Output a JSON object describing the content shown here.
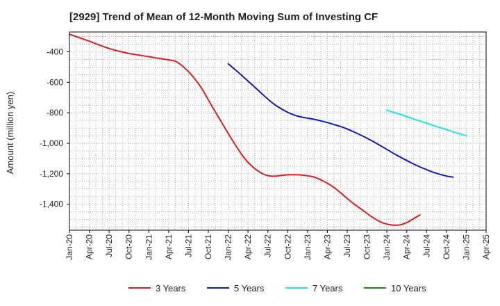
{
  "chart_data": {
    "type": "line",
    "title": "[2929]  Trend of Mean of 12-Month Moving Sum of Investing CF",
    "xlabel": "",
    "ylabel": "Amount (million yen)",
    "x_ticks": [
      "Jan-20",
      "Apr-20",
      "Jul-20",
      "Oct-20",
      "Jan-21",
      "Apr-21",
      "Jul-21",
      "Oct-21",
      "Jan-22",
      "Apr-22",
      "Jul-22",
      "Oct-22",
      "Jan-23",
      "Apr-23",
      "Jul-23",
      "Oct-23",
      "Jan-24",
      "Apr-24",
      "Jul-24",
      "Oct-24",
      "Jan-25",
      "Apr-25"
    ],
    "y_ticks": [
      -400,
      -600,
      -800,
      -1000,
      -1200,
      -1400
    ],
    "y_tick_labels": [
      "-400",
      "-600",
      "-800",
      "-1,000",
      "-1,200",
      "-1,400"
    ],
    "ylim": [
      -1570,
      -270
    ],
    "grid": true,
    "legend_position": "bottom",
    "series": [
      {
        "name": "3 Years",
        "color": "#e31a1c",
        "start_index": 0,
        "values": [
          -285,
          -300,
          -315,
          -330,
          -347,
          -363,
          -378,
          -391,
          -401,
          -411,
          -418,
          -425,
          -432,
          -439,
          -446,
          -453,
          -462,
          -490,
          -530,
          -580,
          -640,
          -715,
          -790,
          -862,
          -935,
          -1005,
          -1070,
          -1125,
          -1165,
          -1195,
          -1212,
          -1216,
          -1211,
          -1207,
          -1206,
          -1208,
          -1213,
          -1222,
          -1240,
          -1262,
          -1290,
          -1325,
          -1362,
          -1397,
          -1428,
          -1460,
          -1490,
          -1515,
          -1530,
          -1537,
          -1535,
          -1520,
          -1495,
          -1470
        ]
      },
      {
        "name": "5 Years",
        "color": "#0b18c8",
        "start_index": 24,
        "values": [
          -478,
          -515,
          -553,
          -592,
          -631,
          -671,
          -710,
          -745,
          -773,
          -797,
          -815,
          -827,
          -835,
          -843,
          -853,
          -864,
          -877,
          -890,
          -906,
          -925,
          -945,
          -967,
          -990,
          -1015,
          -1040,
          -1066,
          -1090,
          -1113,
          -1135,
          -1155,
          -1173,
          -1190,
          -1203,
          -1215,
          -1222
        ]
      },
      {
        "name": "7 Years",
        "color": "#19e5e5",
        "start_index": 48,
        "values": [
          -783,
          -797,
          -810,
          -825,
          -840,
          -854,
          -868,
          -883,
          -897,
          -910,
          -925,
          -938,
          -950
        ]
      },
      {
        "name": "10 Years",
        "color": "#1e8a1e",
        "start_index": 0,
        "values": []
      }
    ]
  }
}
